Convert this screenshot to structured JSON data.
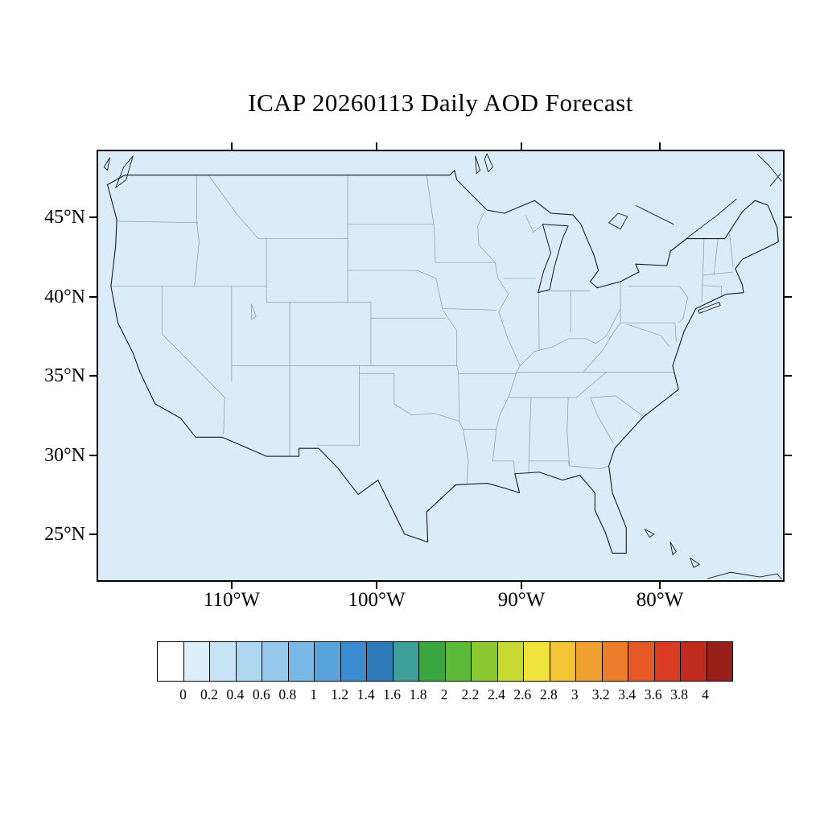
{
  "title": "ICAP 20260113 Daily AOD Forecast",
  "axes": {
    "lat_labels": [
      "45°N",
      "40°N",
      "35°N",
      "30°N",
      "25°N"
    ],
    "lon_labels": [
      "110°W",
      "100°W",
      "90°W",
      "80°W"
    ]
  },
  "map": {
    "region": "Continental United States",
    "fill_color": "#d9ecf8"
  },
  "colorbar": {
    "tick_labels": [
      "0",
      "0.2",
      "0.4",
      "0.6",
      "0.8",
      "1",
      "1.2",
      "1.4",
      "1.6",
      "1.8",
      "2",
      "2.2",
      "2.4",
      "2.6",
      "2.8",
      "3",
      "3.2",
      "3.4",
      "3.6",
      "3.8",
      "4"
    ],
    "cell_colors": [
      "#ffffff",
      "#deeff9",
      "#c6e3f6",
      "#aed7f2",
      "#96c9ed",
      "#79b7e6",
      "#5aa2dc",
      "#3c8bd0",
      "#2f7ab8",
      "#3d9e9a",
      "#3aa63f",
      "#5cb837",
      "#8cc832",
      "#c8d932",
      "#f0e33c",
      "#f3c436",
      "#f0a030",
      "#ec7d2b",
      "#e65926",
      "#d83b22",
      "#c02a1f",
      "#991f1a"
    ]
  },
  "chart_data": {
    "type": "heatmap",
    "title": "ICAP 20260113 Daily AOD Forecast",
    "variable": "AOD",
    "region": "Continental United States",
    "x_axis": {
      "tick_labels": [
        "110°W",
        "100°W",
        "90°W",
        "80°W"
      ]
    },
    "y_axis": {
      "tick_labels": [
        "45°N",
        "40°N",
        "35°N",
        "30°N",
        "25°N"
      ]
    },
    "colorbar": {
      "min": 0,
      "max": 4,
      "interval": 0.2,
      "levels": [
        0,
        0.2,
        0.4,
        0.6,
        0.8,
        1,
        1.2,
        1.4,
        1.6,
        1.8,
        2,
        2.2,
        2.4,
        2.6,
        2.8,
        3,
        3.2,
        3.4,
        3.6,
        3.8,
        4
      ],
      "colors": [
        "#ffffff",
        "#deeff9",
        "#c6e3f6",
        "#aed7f2",
        "#96c9ed",
        "#79b7e6",
        "#5aa2dc",
        "#3c8bd0",
        "#2f7ab8",
        "#3d9e9a",
        "#3aa63f",
        "#5cb837",
        "#8cc832",
        "#c8d932",
        "#f0e33c",
        "#f3c436",
        "#f0a030",
        "#ec7d2b",
        "#e65926",
        "#d83b22",
        "#c02a1f",
        "#991f1a"
      ]
    },
    "field_summary": "Entire visible domain is shaded in the lowest AOD bin (0 to 0.2), shown as uniform pale blue"
  }
}
